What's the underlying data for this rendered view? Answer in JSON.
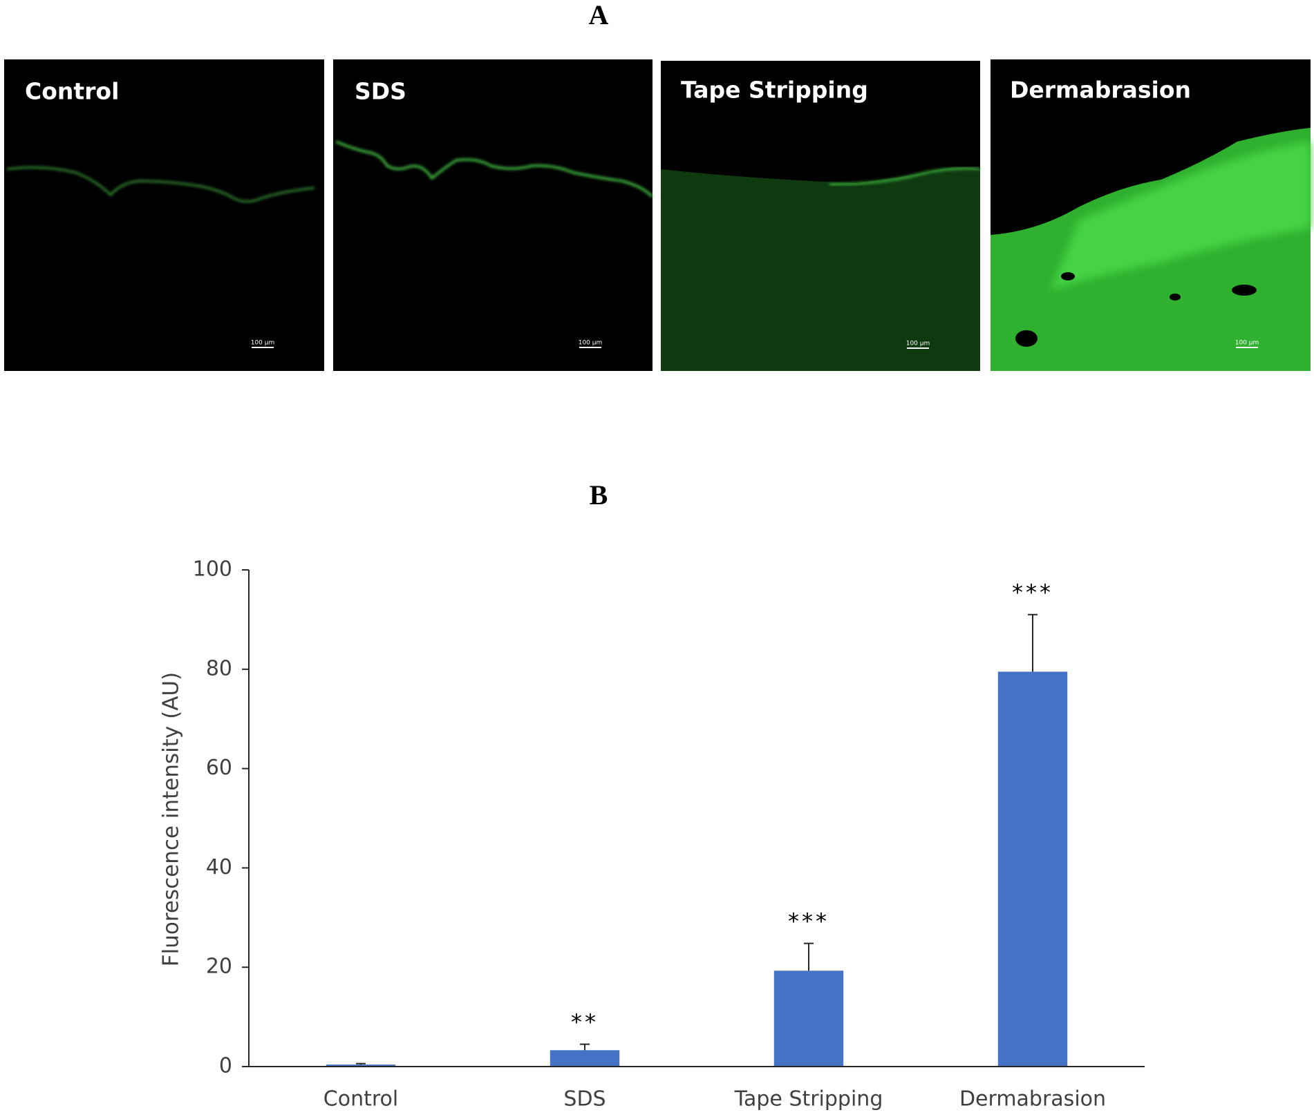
{
  "panel_a": {
    "label": "A",
    "images": [
      {
        "label": "Control",
        "scale_bar": "100 µm"
      },
      {
        "label": "SDS",
        "scale_bar": "100 µm"
      },
      {
        "label": "Tape Stripping",
        "scale_bar": "100 µm"
      },
      {
        "label": "Dermabrasion",
        "scale_bar": "100 µm"
      }
    ]
  },
  "chart_data": {
    "type": "bar",
    "panel_label": "B",
    "y_label": "Fluorescence intensity (AU)",
    "categories": [
      "Control",
      "SDS",
      "Tape Stripping",
      "Dermabrasion"
    ],
    "values": [
      0.4,
      3.3,
      19.3,
      79.5
    ],
    "errors": [
      0.2,
      1.2,
      5.5,
      11.5
    ],
    "annotations": [
      null,
      "**",
      "***",
      "***"
    ],
    "color": "#4472c4",
    "ylim": [
      0,
      100
    ],
    "yticks": [
      0,
      20,
      40,
      60,
      80,
      100
    ],
    "grid": false
  }
}
